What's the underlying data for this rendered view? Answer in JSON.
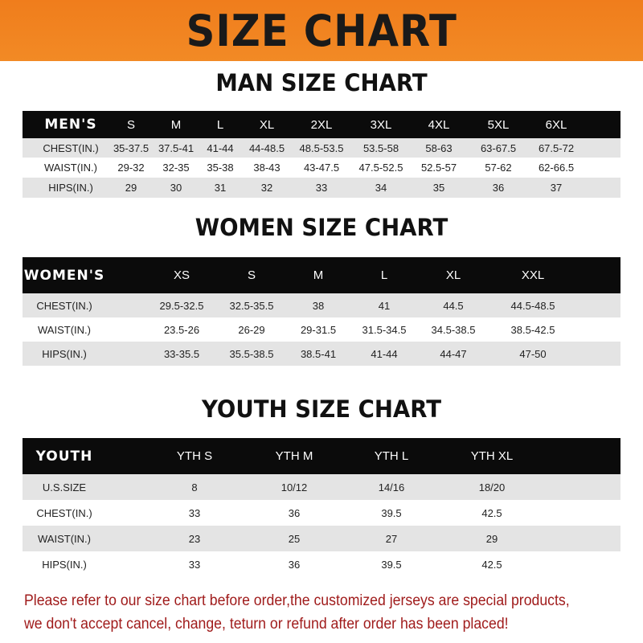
{
  "banner": {
    "title": "SIZE CHART",
    "color": "#f07d1c"
  },
  "men": {
    "title": "MAN SIZE CHART",
    "header": [
      "MEN'S",
      "S",
      "M",
      "L",
      "XL",
      "2XL",
      "3XL",
      "4XL",
      "5XL",
      "6XL"
    ],
    "rows": [
      [
        "CHEST(IN.)",
        "35-37.5",
        "37.5-41",
        "41-44",
        "44-48.5",
        "48.5-53.5",
        "53.5-58",
        "58-63",
        "63-67.5",
        "67.5-72"
      ],
      [
        "WAIST(IN.)",
        "29-32",
        "32-35",
        "35-38",
        "38-43",
        "43-47.5",
        "47.5-52.5",
        "52.5-57",
        "57-62",
        "62-66.5"
      ],
      [
        "HIPS(IN.)",
        "29",
        "30",
        "31",
        "32",
        "33",
        "34",
        "35",
        "36",
        "37"
      ]
    ]
  },
  "women": {
    "title": "WOMEN SIZE CHART",
    "header": [
      "WOMEN'S",
      "XS",
      "S",
      "M",
      "L",
      "XL",
      "XXL"
    ],
    "rows": [
      [
        "CHEST(IN.)",
        "29.5-32.5",
        "32.5-35.5",
        "38",
        "41",
        "44.5",
        "44.5-48.5"
      ],
      [
        "WAIST(IN.)",
        "23.5-26",
        "26-29",
        "29-31.5",
        "31.5-34.5",
        "34.5-38.5",
        "38.5-42.5"
      ],
      [
        "HIPS(IN.)",
        "33-35.5",
        "35.5-38.5",
        "38.5-41",
        "41-44",
        "44-47",
        "47-50"
      ]
    ]
  },
  "youth": {
    "title": "YOUTH SIZE CHART",
    "header": [
      "YOUTH",
      "YTH S",
      "YTH M",
      "YTH L",
      "YTH XL"
    ],
    "rows": [
      [
        "U.S.SIZE",
        "8",
        "10/12",
        "14/16",
        "18/20"
      ],
      [
        "CHEST(IN.)",
        "33",
        "36",
        "39.5",
        "42.5"
      ],
      [
        "WAIST(IN.)",
        "23",
        "25",
        "27",
        "29"
      ],
      [
        "HIPS(IN.)",
        "33",
        "36",
        "39.5",
        "42.5"
      ]
    ]
  },
  "notice": {
    "line1": "Please refer to our size chart before order,the customized jerseys are special products,",
    "line2": "we don't accept cancel, change, teturn or refund after order has been placed!",
    "color": "#a01c1c"
  }
}
